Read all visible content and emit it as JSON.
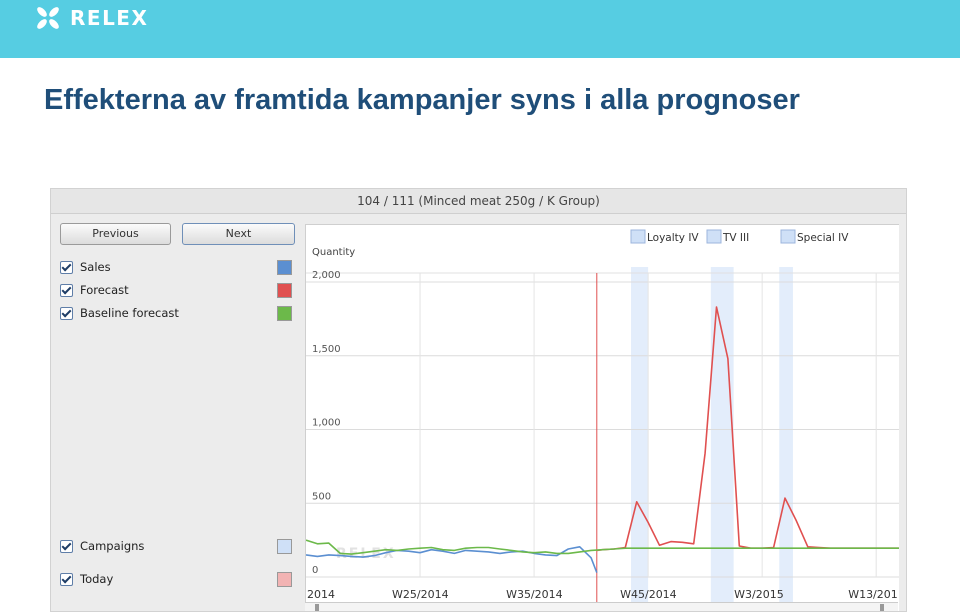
{
  "brand": {
    "logo_text": "RELEX",
    "topbar_color": "#56cde2"
  },
  "slide": {
    "title": "Effekterna av framtida kampanjer syns i alla prognoser"
  },
  "app": {
    "header": "104 / 111 (Minced meat 250g / K Group)",
    "prev_label": "Previous",
    "next_label": "Next",
    "series_toggles": [
      {
        "label": "Sales",
        "color": "#5b8fd1",
        "checked": true
      },
      {
        "label": "Forecast",
        "color": "#e05050",
        "checked": true
      },
      {
        "label": "Baseline forecast",
        "color": "#6cb94a",
        "checked": true
      }
    ],
    "overlay_toggles": [
      {
        "label": "Campaigns",
        "color": "#cfe0f7",
        "checked": true
      },
      {
        "label": "Today",
        "color": "#f2b3b3",
        "checked": true
      }
    ]
  },
  "chart_data": {
    "type": "line",
    "ylabel": "Quantity",
    "ylim": [
      0,
      2000
    ],
    "yticks": [
      0,
      500,
      1000,
      1500,
      2000
    ],
    "ytick_labels": [
      "0",
      "500",
      "1,000",
      "1,500",
      "2,000"
    ],
    "xticks": [
      {
        "week": 0,
        "label": "2014"
      },
      {
        "week": 10,
        "label": "W25/2014"
      },
      {
        "week": 20,
        "label": "W35/2014"
      },
      {
        "week": 30,
        "label": "W45/2014"
      },
      {
        "week": 40,
        "label": "W3/2015"
      },
      {
        "week": 50,
        "label": "W13/201"
      }
    ],
    "week_range": [
      0,
      52
    ],
    "today_week": 25.5,
    "legend": [
      {
        "name": "Loyalty IV",
        "color": "#cfe0f7"
      },
      {
        "name": "TV III",
        "color": "#cfe0f7"
      },
      {
        "name": "Special IV",
        "color": "#cfe0f7"
      }
    ],
    "campaigns": [
      {
        "name": "Loyalty IV",
        "start_week": 28.5,
        "end_week": 30.0
      },
      {
        "name": "TV III",
        "start_week": 35.5,
        "end_week": 37.5
      },
      {
        "name": "Special IV",
        "start_week": 41.5,
        "end_week": 42.7
      }
    ],
    "series": [
      {
        "name": "Sales",
        "color": "#5b8fd1",
        "points": [
          [
            0,
            150
          ],
          [
            1,
            140
          ],
          [
            2,
            150
          ],
          [
            3,
            145
          ],
          [
            4,
            140
          ],
          [
            5,
            135
          ],
          [
            6,
            145
          ],
          [
            7,
            165
          ],
          [
            8,
            180
          ],
          [
            9,
            175
          ],
          [
            10,
            165
          ],
          [
            11,
            185
          ],
          [
            12,
            175
          ],
          [
            13,
            160
          ],
          [
            14,
            180
          ],
          [
            15,
            175
          ],
          [
            16,
            170
          ],
          [
            17,
            160
          ],
          [
            18,
            170
          ],
          [
            19,
            175
          ],
          [
            20,
            160
          ],
          [
            21,
            150
          ],
          [
            22,
            145
          ],
          [
            23,
            190
          ],
          [
            24,
            205
          ],
          [
            25,
            130
          ],
          [
            25.5,
            30
          ]
        ]
      },
      {
        "name": "Forecast",
        "color": "#e05050",
        "points": [
          [
            25.5,
            180
          ],
          [
            26,
            185
          ],
          [
            27,
            190
          ],
          [
            28,
            200
          ],
          [
            29,
            510
          ],
          [
            30,
            370
          ],
          [
            31,
            215
          ],
          [
            32,
            240
          ],
          [
            33,
            235
          ],
          [
            34,
            225
          ],
          [
            35,
            840
          ],
          [
            36,
            1830
          ],
          [
            37,
            1480
          ],
          [
            38,
            210
          ],
          [
            39,
            195
          ],
          [
            40,
            195
          ],
          [
            41,
            200
          ],
          [
            42,
            535
          ],
          [
            43,
            380
          ],
          [
            44,
            205
          ],
          [
            45,
            200
          ],
          [
            46,
            195
          ],
          [
            47,
            195
          ],
          [
            48,
            195
          ],
          [
            49,
            195
          ],
          [
            50,
            195
          ],
          [
            51,
            195
          ],
          [
            52,
            195
          ]
        ]
      },
      {
        "name": "Baseline forecast",
        "color": "#6cb94a",
        "points": [
          [
            0,
            250
          ],
          [
            1,
            225
          ],
          [
            2,
            230
          ],
          [
            3,
            160
          ],
          [
            4,
            155
          ],
          [
            5,
            165
          ],
          [
            6,
            175
          ],
          [
            7,
            185
          ],
          [
            8,
            180
          ],
          [
            9,
            190
          ],
          [
            10,
            195
          ],
          [
            11,
            200
          ],
          [
            12,
            185
          ],
          [
            13,
            180
          ],
          [
            14,
            195
          ],
          [
            15,
            200
          ],
          [
            16,
            200
          ],
          [
            17,
            190
          ],
          [
            18,
            180
          ],
          [
            19,
            170
          ],
          [
            20,
            165
          ],
          [
            21,
            170
          ],
          [
            22,
            160
          ],
          [
            23,
            160
          ],
          [
            24,
            170
          ],
          [
            25,
            180
          ],
          [
            26,
            185
          ],
          [
            27,
            190
          ],
          [
            28,
            195
          ],
          [
            29,
            195
          ],
          [
            30,
            195
          ],
          [
            31,
            195
          ],
          [
            32,
            195
          ],
          [
            33,
            195
          ],
          [
            34,
            195
          ],
          [
            35,
            195
          ],
          [
            36,
            195
          ],
          [
            37,
            195
          ],
          [
            38,
            195
          ],
          [
            39,
            195
          ],
          [
            40,
            195
          ],
          [
            41,
            195
          ],
          [
            42,
            195
          ],
          [
            43,
            195
          ],
          [
            44,
            195
          ],
          [
            45,
            195
          ],
          [
            46,
            195
          ],
          [
            47,
            195
          ],
          [
            48,
            195
          ],
          [
            49,
            195
          ],
          [
            50,
            195
          ],
          [
            51,
            195
          ],
          [
            52,
            195
          ]
        ]
      }
    ],
    "watermark": "RELEX"
  }
}
